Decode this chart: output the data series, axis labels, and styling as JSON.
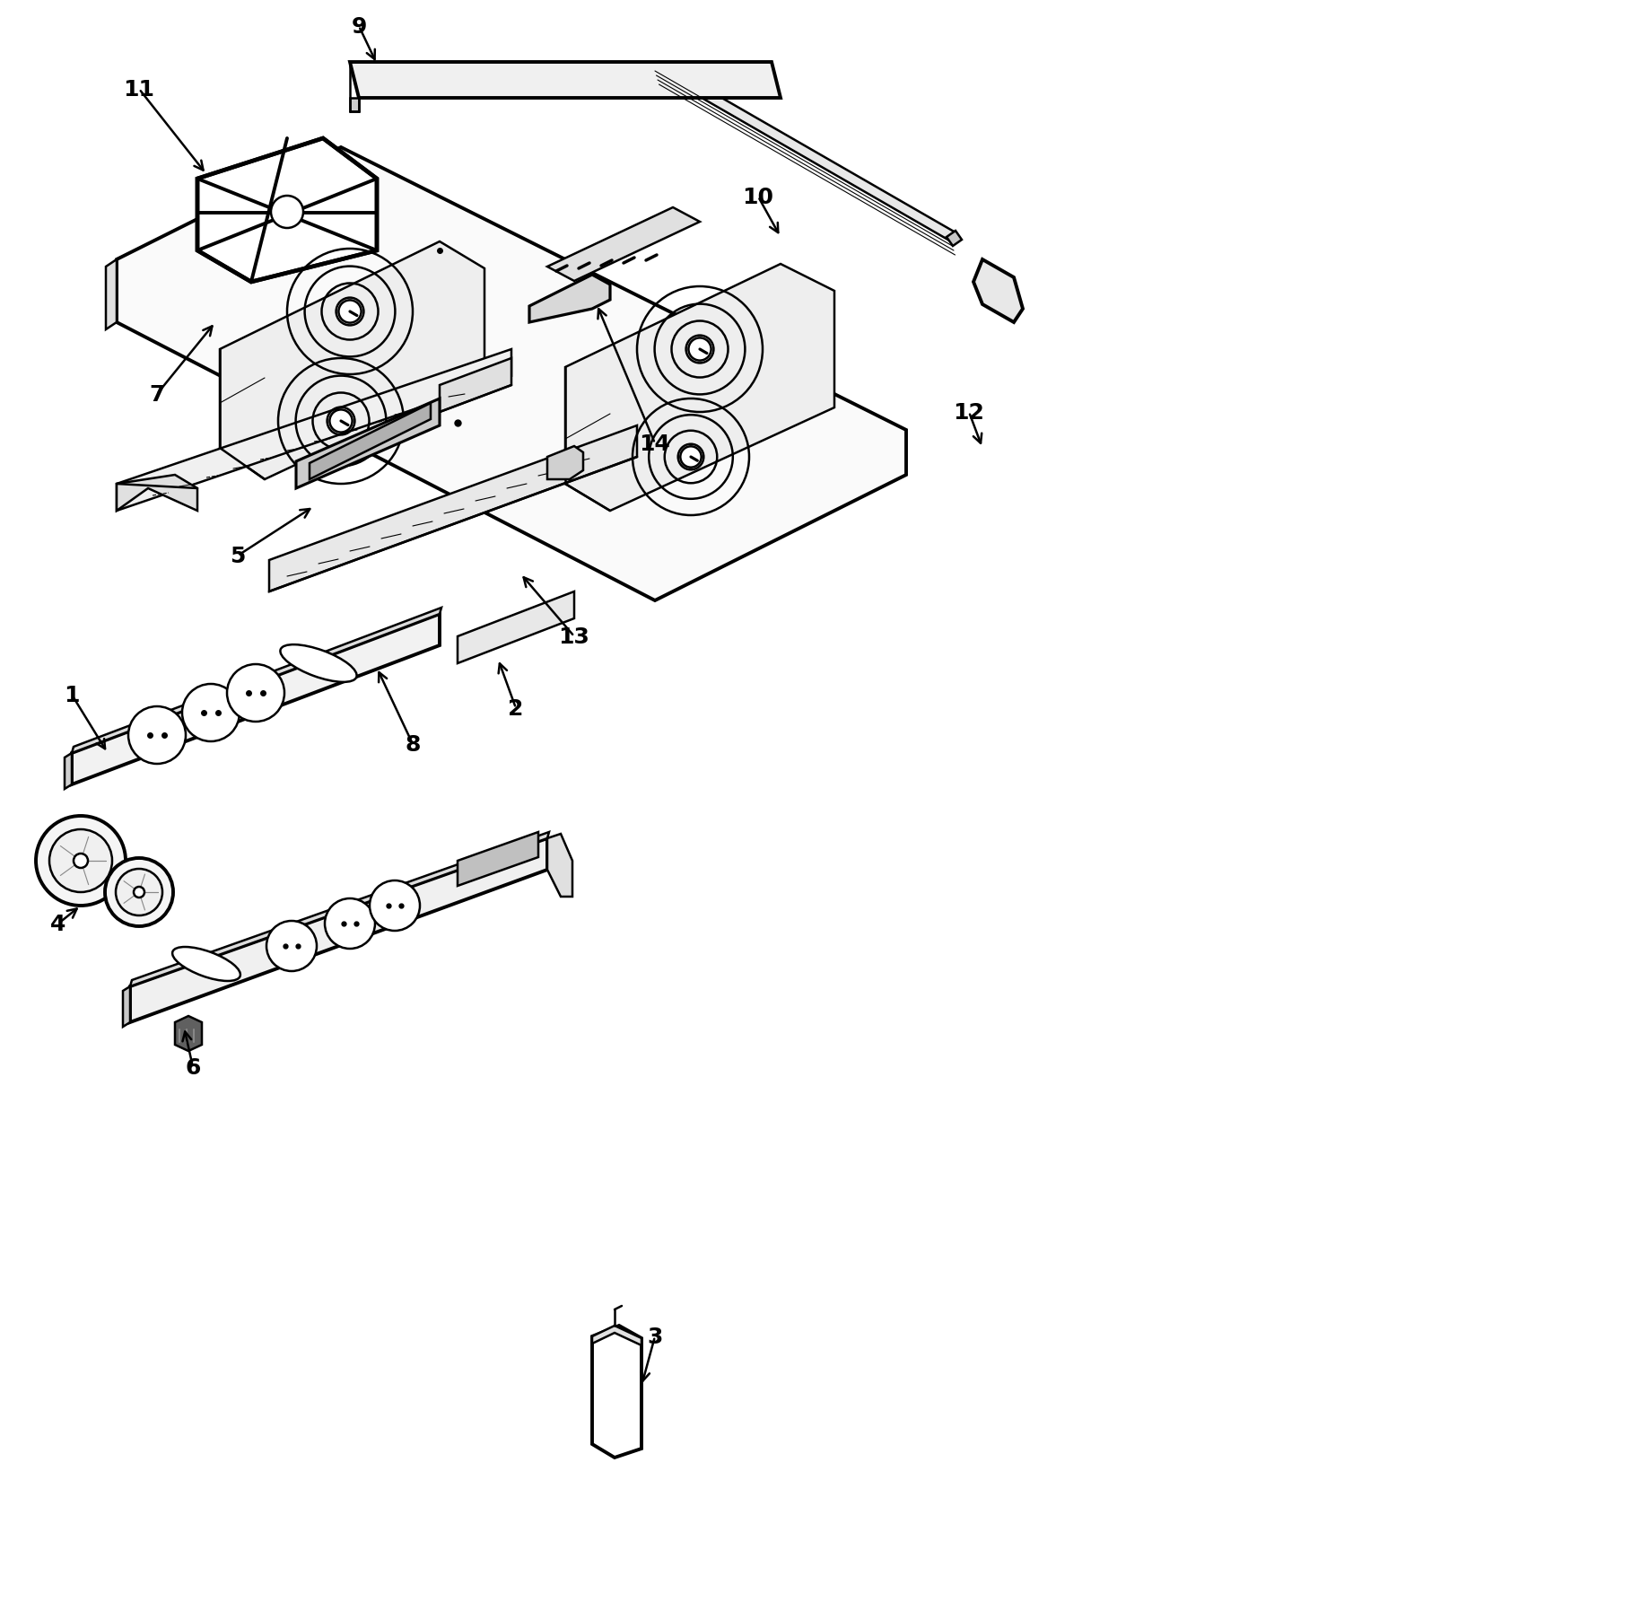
{
  "background_color": "#ffffff",
  "line_color": "#000000",
  "lw": 1.8,
  "blw": 2.8,
  "fig_w": 18.19,
  "fig_h": 18.06
}
